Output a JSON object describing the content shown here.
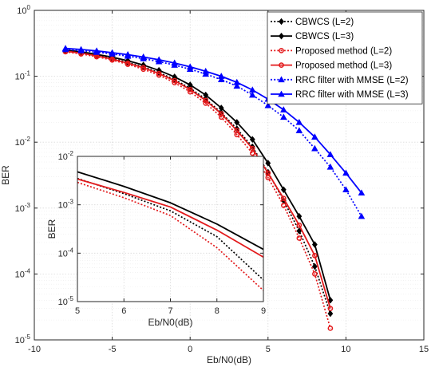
{
  "chart_data": [
    {
      "type": "line",
      "xlabel": "Eb/N0(dB)",
      "ylabel": "BER",
      "xlim": [
        -10,
        15
      ],
      "ylim": [
        1e-05,
        1
      ],
      "yscale": "log",
      "grid": "on",
      "legend_position": "top-right",
      "x_ticks": [
        "-10",
        "-5",
        "0",
        "5",
        "10",
        "15"
      ],
      "y_ticks": [
        {
          "base": "10",
          "exp": "0"
        },
        {
          "base": "10",
          "exp": "-1"
        },
        {
          "base": "10",
          "exp": "-2"
        },
        {
          "base": "10",
          "exp": "-3"
        },
        {
          "base": "10",
          "exp": "-4"
        },
        {
          "base": "10",
          "exp": "-5"
        }
      ],
      "series": [
        {
          "name": "CBWCS (L=2)",
          "color": "#000000",
          "dash": "dotted",
          "marker": "diamond",
          "x": [
            -8,
            -7,
            -6,
            -5,
            -4,
            -3,
            -2,
            -1,
            0,
            1,
            2,
            3,
            4,
            5,
            6,
            7,
            8,
            9
          ],
          "y": [
            0.245,
            0.228,
            0.208,
            0.186,
            0.162,
            0.139,
            0.114,
            0.089,
            0.066,
            0.045,
            0.028,
            0.016,
            0.0085,
            0.0035,
            0.0013,
            0.00045,
            0.00013,
            2.5e-05
          ]
        },
        {
          "name": "CBWCS (L=3)",
          "color": "#000000",
          "dash": "solid",
          "marker": "diamond",
          "x": [
            -8,
            -7,
            -6,
            -5,
            -4,
            -3,
            -2,
            -1,
            0,
            1,
            2,
            3,
            4,
            5,
            6,
            7,
            8,
            9
          ],
          "y": [
            0.25,
            0.235,
            0.215,
            0.195,
            0.172,
            0.148,
            0.123,
            0.098,
            0.074,
            0.052,
            0.033,
            0.02,
            0.011,
            0.0048,
            0.0019,
            0.00075,
            0.00028,
            4e-05
          ]
        },
        {
          "name": "Proposed method (L=2)",
          "color": "#e31a1c",
          "dash": "dotted",
          "marker": "circle",
          "x": [
            -8,
            -7,
            -6,
            -5,
            -4,
            -3,
            -2,
            -1,
            0,
            1,
            2,
            3,
            4,
            5,
            6,
            7,
            8,
            9
          ],
          "y": [
            0.235,
            0.218,
            0.198,
            0.176,
            0.152,
            0.128,
            0.104,
            0.08,
            0.058,
            0.039,
            0.024,
            0.013,
            0.0068,
            0.0029,
            0.0011,
            0.00035,
            0.0001,
            1.5e-05
          ]
        },
        {
          "name": "Proposed method (L=3)",
          "color": "#e31a1c",
          "dash": "solid",
          "marker": "circle",
          "x": [
            -8,
            -7,
            -6,
            -5,
            -4,
            -3,
            -2,
            -1,
            0,
            1,
            2,
            3,
            4,
            5,
            6,
            7,
            8,
            9
          ],
          "y": [
            0.24,
            0.225,
            0.204,
            0.182,
            0.158,
            0.135,
            0.11,
            0.086,
            0.063,
            0.043,
            0.027,
            0.015,
            0.008,
            0.0034,
            0.0014,
            0.00055,
            0.00019,
            3e-05
          ]
        },
        {
          "name": "RRC filter with MMSE (L=2)",
          "color": "#0000ff",
          "dash": "dotted",
          "marker": "triangle",
          "x": [
            -8,
            -7,
            -6,
            -5,
            -4,
            -3,
            -2,
            -1,
            0,
            1,
            2,
            3,
            4,
            5,
            6,
            7,
            8,
            9,
            10,
            11
          ],
          "y": [
            0.255,
            0.245,
            0.232,
            0.218,
            0.202,
            0.185,
            0.167,
            0.148,
            0.128,
            0.108,
            0.089,
            0.071,
            0.052,
            0.036,
            0.024,
            0.015,
            0.008,
            0.0042,
            0.0019,
            0.00075
          ]
        },
        {
          "name": "RRC filter with MMSE (L=3)",
          "color": "#0000ff",
          "dash": "solid",
          "marker": "triangle",
          "x": [
            -8,
            -7,
            -6,
            -5,
            -4,
            -3,
            -2,
            -1,
            0,
            1,
            2,
            3,
            4,
            5,
            6,
            7,
            8,
            9,
            10,
            11
          ],
          "y": [
            0.265,
            0.255,
            0.243,
            0.228,
            0.213,
            0.196,
            0.178,
            0.159,
            0.139,
            0.119,
            0.1,
            0.081,
            0.062,
            0.045,
            0.031,
            0.02,
            0.012,
            0.0065,
            0.0034,
            0.0017
          ]
        }
      ]
    },
    {
      "type": "line",
      "xlabel": "Eb/N0(dB)",
      "ylabel": "BER",
      "xlim": [
        5,
        9
      ],
      "ylim": [
        1e-05,
        0.01
      ],
      "yscale": "log",
      "grid": "on",
      "x_ticks": [
        "5",
        "6",
        "7",
        "8",
        "9"
      ],
      "y_ticks": [
        {
          "base": "10",
          "exp": "-2"
        },
        {
          "base": "10",
          "exp": "-3"
        },
        {
          "base": "10",
          "exp": "-4"
        },
        {
          "base": "10",
          "exp": "-5"
        }
      ],
      "series": [
        {
          "name": "CBWCS (L=2)",
          "color": "#000000",
          "dash": "dotted",
          "marker": "diamond",
          "x": [
            5,
            6,
            7,
            8,
            9
          ],
          "y": [
            0.0035,
            0.0017,
            0.00075,
            0.00022,
            2.8e-05
          ]
        },
        {
          "name": "CBWCS (L=3)",
          "color": "#000000",
          "dash": "solid",
          "marker": "diamond",
          "x": [
            5,
            6,
            7,
            8,
            9
          ],
          "y": [
            0.0048,
            0.0024,
            0.0011,
            0.0004,
            0.00012
          ]
        },
        {
          "name": "Proposed method (L=2)",
          "color": "#e31a1c",
          "dash": "dotted",
          "marker": "circle",
          "x": [
            5,
            6,
            7,
            8,
            9
          ],
          "y": [
            0.0029,
            0.0014,
            0.0006,
            0.00013,
            1.7e-05
          ]
        },
        {
          "name": "Proposed method (L=3)",
          "color": "#e31a1c",
          "dash": "solid",
          "marker": "circle",
          "x": [
            5,
            6,
            7,
            8,
            9
          ],
          "y": [
            0.0034,
            0.0018,
            0.0009,
            0.0003,
            8.3e-05
          ]
        }
      ]
    }
  ]
}
